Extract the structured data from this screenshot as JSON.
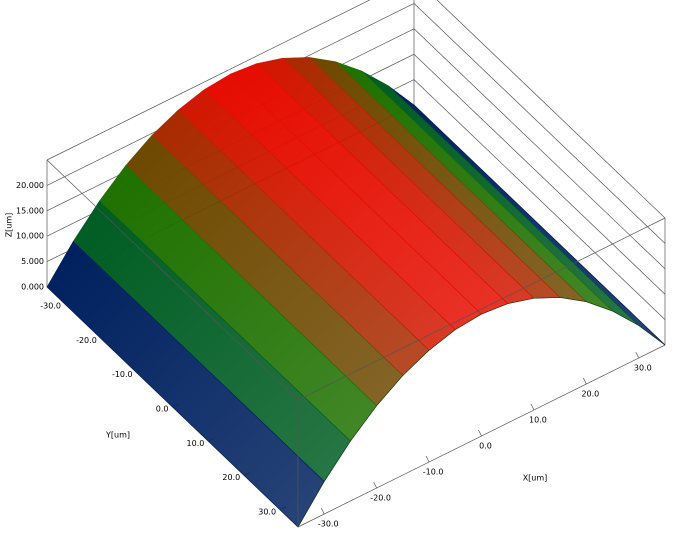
{
  "chart_data": {
    "type": "surface",
    "xlabel": "X[um]",
    "ylabel": "Y[um]",
    "zlabel": "Z[um]",
    "x": [
      -35,
      -30,
      -25,
      -20,
      -15,
      -10,
      -5,
      0,
      5,
      10,
      15,
      20,
      25,
      30,
      35
    ],
    "values": [
      0,
      6.4,
      11.8,
      16.2,
      19.6,
      22.0,
      23.5,
      24,
      23.5,
      22.0,
      19.6,
      16.2,
      11.8,
      6.4,
      0
    ],
    "xlim": [
      -35,
      35
    ],
    "ylim": [
      -35,
      35
    ],
    "zlim": [
      0,
      25
    ],
    "xticks": [
      {
        "value": -30,
        "label": "-30.0"
      },
      {
        "value": -20,
        "label": "-20.0"
      },
      {
        "value": -10,
        "label": "-10.0"
      },
      {
        "value": 0,
        "label": "0.0"
      },
      {
        "value": 10,
        "label": "10.0"
      },
      {
        "value": 20,
        "label": "20.0"
      },
      {
        "value": 30,
        "label": "30.0"
      }
    ],
    "yticks": [
      {
        "value": -30,
        "label": "-30.0"
      },
      {
        "value": -20,
        "label": "-20.0"
      },
      {
        "value": -10,
        "label": "-10.0"
      },
      {
        "value": 0,
        "label": "0.0"
      },
      {
        "value": 10,
        "label": "10.0"
      },
      {
        "value": 20,
        "label": "20.0"
      },
      {
        "value": 30,
        "label": "30.0"
      }
    ],
    "zticks": [
      {
        "value": 0,
        "label": "0.000"
      },
      {
        "value": 5,
        "label": "5.000"
      },
      {
        "value": 10,
        "label": "10.000"
      },
      {
        "value": 15,
        "label": "15.000"
      },
      {
        "value": 20,
        "label": "20.000"
      }
    ],
    "colormap": [
      "#000080",
      "#008000",
      "#ff0000"
    ],
    "grid": true
  }
}
